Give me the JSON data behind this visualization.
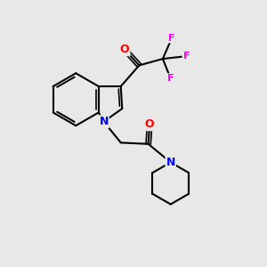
{
  "background_color": "#e8e8e8",
  "bond_color": "#000000",
  "atom_colors": {
    "O": "#ff0000",
    "N": "#0000ff",
    "F": "#ff00ff"
  },
  "figsize": [
    3.0,
    3.0
  ],
  "dpi": 100
}
